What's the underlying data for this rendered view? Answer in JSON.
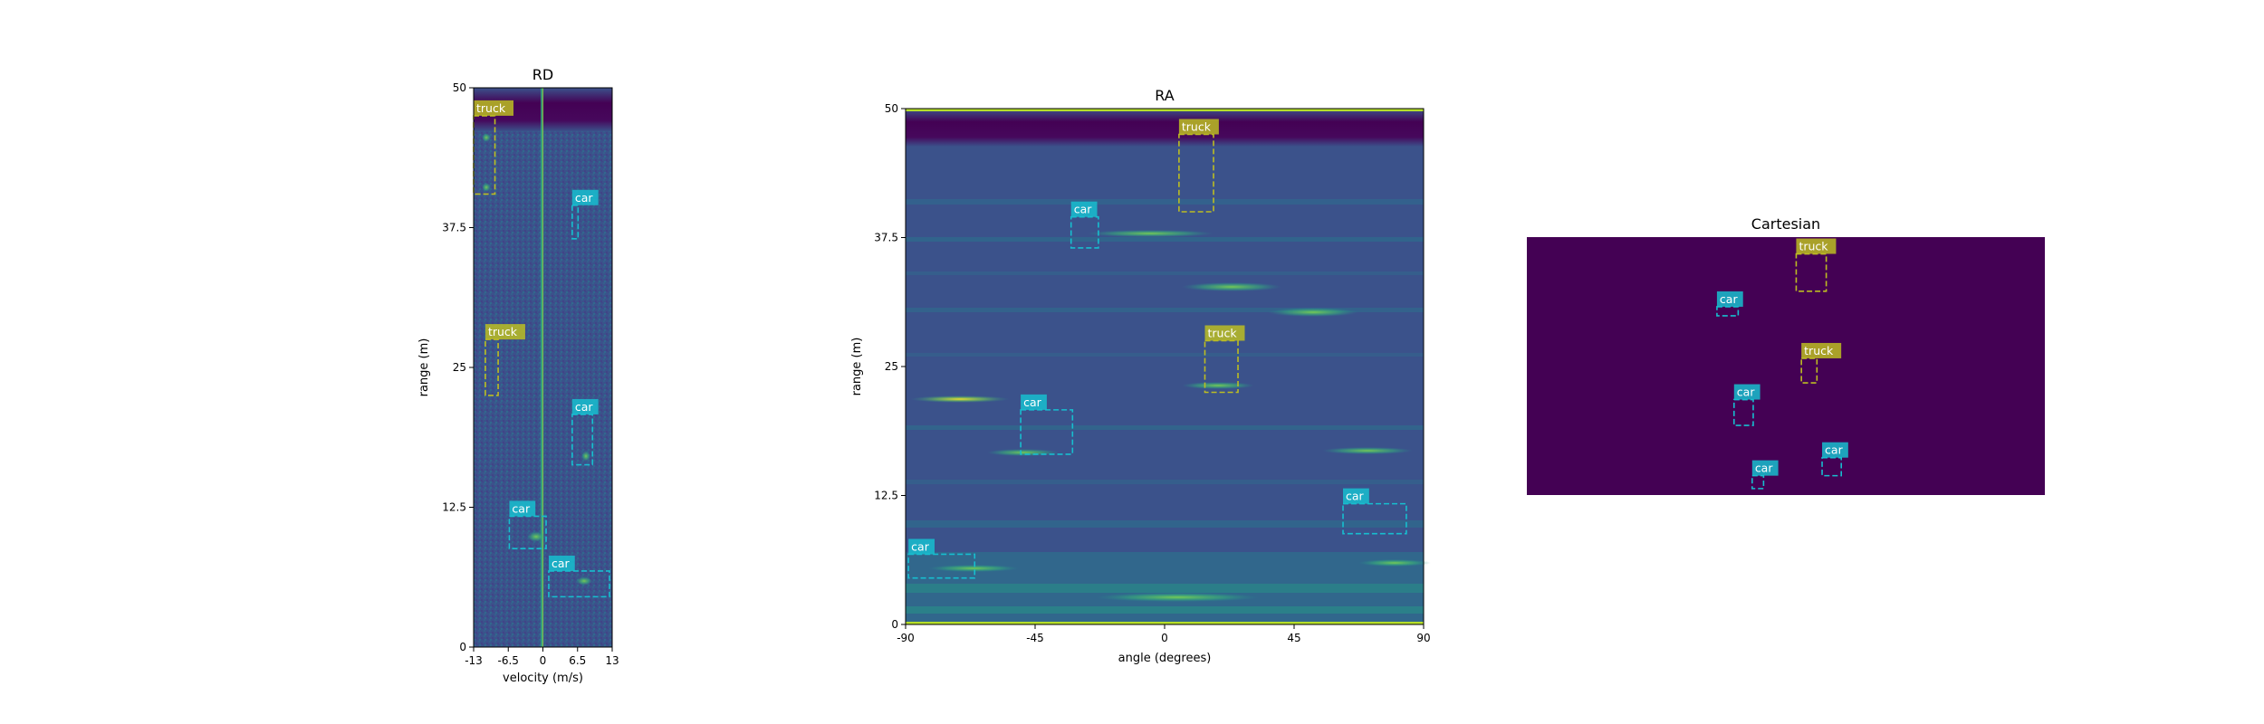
{
  "colors": {
    "car": "#17becf",
    "truck": "#bcbd22",
    "heatmap_low": "#440154",
    "heatmap_mid": "#3b528b",
    "heatmap_high": "#fde725"
  },
  "chart_data": [
    {
      "type": "heatmap",
      "title": "RD",
      "xlabel": "velocity (m/s)",
      "ylabel": "range (m)",
      "xlim": [
        -13,
        13
      ],
      "ylim": [
        0,
        50
      ],
      "xticks": [
        "-13",
        "-6.5",
        "0",
        "6.5",
        "13"
      ],
      "xtick_values": [
        -13,
        -6.5,
        0,
        6.5,
        13
      ],
      "yticks": [
        "0",
        "12.5",
        "25",
        "37.5",
        "50"
      ],
      "ytick_values": [
        0,
        12.5,
        25,
        37.5,
        50
      ],
      "annotations": [
        {
          "label": "truck",
          "x0": -13,
          "x1": -9,
          "y0": 40.5,
          "y1": 47.5
        },
        {
          "label": "car",
          "x0": 5.5,
          "x1": 6.6,
          "y0": 36.5,
          "y1": 39.5
        },
        {
          "label": "truck",
          "x0": -10.8,
          "x1": -8.4,
          "y0": 22.5,
          "y1": 27.5
        },
        {
          "label": "car",
          "x0": 5.5,
          "x1": 9.3,
          "y0": 16.3,
          "y1": 20.8
        },
        {
          "label": "car",
          "x0": -6.3,
          "x1": 0.6,
          "y0": 8.8,
          "y1": 11.7
        },
        {
          "label": "car",
          "x0": 1.1,
          "x1": 12.5,
          "y0": 4.5,
          "y1": 6.8
        }
      ]
    },
    {
      "type": "heatmap",
      "title": "RA",
      "xlabel": "angle (degrees)",
      "ylabel": "range (m)",
      "xlim": [
        -90,
        90
      ],
      "ylim": [
        0,
        50
      ],
      "xticks": [
        "-90",
        "-45",
        "0",
        "45",
        "90"
      ],
      "xtick_values": [
        -90,
        -45,
        0,
        45,
        90
      ],
      "yticks": [
        "0",
        "12.5",
        "25",
        "37.5",
        "50"
      ],
      "ytick_values": [
        0,
        12.5,
        25,
        37.5,
        50
      ],
      "annotations": [
        {
          "label": "truck",
          "x0": 5,
          "x1": 17,
          "y0": 40,
          "y1": 47.5
        },
        {
          "label": "car",
          "x0": -32.5,
          "x1": -23,
          "y0": 36.5,
          "y1": 39.5
        },
        {
          "label": "truck",
          "x0": 14,
          "x1": 25.5,
          "y0": 22.5,
          "y1": 27.5
        },
        {
          "label": "car",
          "x0": -50,
          "x1": -32,
          "y0": 16.5,
          "y1": 20.8
        },
        {
          "label": "car",
          "x0": 62,
          "x1": 84,
          "y0": 8.8,
          "y1": 11.7
        },
        {
          "label": "car",
          "x0": -89,
          "x1": -66,
          "y0": 4.5,
          "y1": 6.8
        }
      ]
    },
    {
      "type": "heatmap",
      "title": "Cartesian",
      "annotations": [
        {
          "label": "truck",
          "x0": 0.52,
          "x1": 0.578,
          "y0": 0.79,
          "y1": 0.935
        },
        {
          "label": "car",
          "x0": 0.367,
          "x1": 0.408,
          "y0": 0.695,
          "y1": 0.73
        },
        {
          "label": "truck",
          "x0": 0.53,
          "x1": 0.56,
          "y0": 0.435,
          "y1": 0.53
        },
        {
          "label": "car",
          "x0": 0.4,
          "x1": 0.437,
          "y0": 0.27,
          "y1": 0.37
        },
        {
          "label": "car",
          "x0": 0.57,
          "x1": 0.607,
          "y0": 0.075,
          "y1": 0.145
        },
        {
          "label": "car",
          "x0": 0.435,
          "x1": 0.457,
          "y0": 0.025,
          "y1": 0.075
        }
      ]
    }
  ]
}
